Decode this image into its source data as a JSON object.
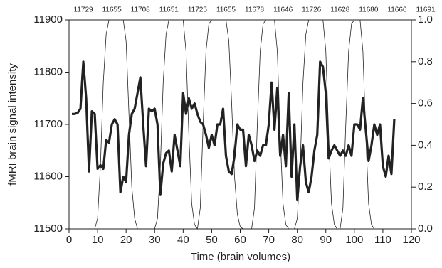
{
  "chart_data": {
    "type": "line",
    "xlabel": "Time (brain volumes)",
    "ylabel": "fMRI brain signal intensity",
    "top_labels": [
      "11729",
      "11655",
      "11708",
      "11651",
      "11725",
      "11655",
      "11678",
      "11646",
      "11726",
      "11628",
      "11680",
      "11666",
      "11691"
    ],
    "x": [
      1,
      2,
      3,
      4,
      5,
      6,
      7,
      8,
      9,
      10,
      11,
      12,
      13,
      14,
      15,
      16,
      17,
      18,
      19,
      20,
      21,
      22,
      23,
      24,
      25,
      26,
      27,
      28,
      29,
      30,
      31,
      32,
      33,
      34,
      35,
      36,
      37,
      38,
      39,
      40,
      41,
      42,
      43,
      44,
      45,
      46,
      47,
      48,
      49,
      50,
      51,
      52,
      53,
      54,
      55,
      56,
      57,
      58,
      59,
      60,
      61,
      62,
      63,
      64,
      65,
      66,
      67,
      68,
      69,
      70,
      71,
      72,
      73,
      74,
      75,
      76,
      77,
      78,
      79,
      80,
      81,
      82,
      83,
      84,
      85,
      86,
      87,
      88,
      89,
      90,
      91,
      92,
      93,
      94,
      95,
      96,
      97,
      98,
      99,
      100,
      101,
      102,
      103,
      104,
      105,
      106,
      107,
      108,
      109,
      110,
      111,
      112,
      113,
      114
    ],
    "series": [
      {
        "color": "#222222",
        "width": 3.2,
        "values": [
          11720,
          11720,
          11722,
          11730,
          11820,
          11750,
          11610,
          11725,
          11720,
          11615,
          11622,
          11615,
          11670,
          11665,
          11700,
          11710,
          11700,
          11570,
          11600,
          11590,
          11680,
          11720,
          11730,
          11760,
          11790,
          11700,
          11620,
          11730,
          11725,
          11730,
          11700,
          11565,
          11625,
          11645,
          11650,
          11610,
          11680,
          11650,
          11620,
          11760,
          11720,
          11750,
          11730,
          11740,
          11720,
          11705,
          11700,
          11680,
          11655,
          11680,
          11660,
          11700,
          11700,
          11730,
          11640,
          11610,
          11605,
          11640,
          11700,
          11690,
          11690,
          11620,
          11680,
          11660,
          11630,
          11650,
          11640,
          11660,
          11660,
          11700,
          11780,
          11690,
          11770,
          11640,
          11680,
          11620,
          11760,
          11600,
          11700,
          11555,
          11620,
          11660,
          11590,
          11570,
          11600,
          11650,
          11680,
          11820,
          11810,
          11760,
          11635,
          11650,
          11660,
          11650,
          11640,
          11650,
          11640,
          11660,
          11640,
          11700,
          11700,
          11690,
          11750,
          11690,
          11630,
          11660,
          11700,
          11680,
          11700,
          11620,
          11600,
          11640,
          11605,
          11710
        ]
      },
      {
        "color": "#222222",
        "width": 0.8,
        "axis": "y2",
        "values": [
          0,
          0,
          0,
          0,
          0,
          0,
          0,
          0,
          0,
          0.05,
          0.3,
          0.7,
          0.93,
          1,
          1,
          1,
          1,
          1,
          1,
          0.9,
          0.55,
          0.2,
          0.05,
          0,
          0,
          0,
          0,
          0,
          0,
          0,
          0.05,
          0.3,
          0.7,
          0.93,
          1,
          1,
          1,
          1,
          1,
          1,
          0.85,
          0.45,
          0.12,
          0.02,
          0,
          0.1,
          0.5,
          0.85,
          0.98,
          1,
          1,
          1,
          1,
          1,
          1,
          0.9,
          0.6,
          0.25,
          0.07,
          0.01,
          0,
          0,
          0,
          0,
          0.1,
          0.5,
          0.85,
          0.98,
          1,
          1,
          1,
          1,
          0.85,
          0.45,
          0.12,
          0.02,
          0,
          0,
          0,
          0.05,
          0.3,
          0.7,
          0.93,
          1,
          1,
          1,
          1,
          1,
          1,
          0.85,
          0.45,
          0.12,
          0.02,
          0,
          0,
          0.1,
          0.5,
          0.85,
          0.98,
          1,
          1,
          1,
          0.85,
          0.45,
          0.12,
          0.02,
          0,
          0,
          0,
          0,
          0,
          0,
          0,
          0
        ]
      }
    ],
    "xlim": [
      0,
      120
    ],
    "xticks": [
      0,
      10,
      20,
      30,
      40,
      50,
      60,
      70,
      80,
      90,
      100,
      110,
      120
    ],
    "ylim": [
      11500,
      11900
    ],
    "yticks": [
      11500,
      11600,
      11700,
      11800,
      11900
    ],
    "y2lim": [
      0,
      1
    ],
    "y2ticks": [
      {
        "value": 0,
        "label": "0.0"
      },
      {
        "value": 0.2,
        "label": "0.2"
      },
      {
        "value": 0.4,
        "label": "0.4"
      },
      {
        "value": 0.6,
        "label": "0.6"
      },
      {
        "value": 0.8,
        "label": "0.8"
      },
      {
        "value": 1,
        "label": "1.0"
      }
    ]
  }
}
